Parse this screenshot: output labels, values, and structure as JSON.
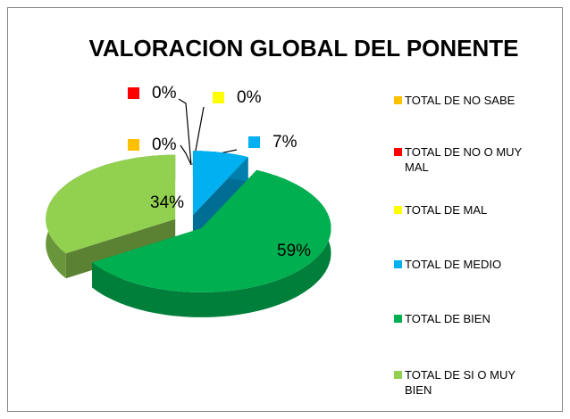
{
  "chart_data": {
    "type": "pie",
    "title": "VALORACION GLOBAL DEL PONENTE",
    "categories": [
      "TOTAL DE NO SABE",
      "TOTAL DE NO O MUY MAL",
      "TOTAL DE MAL",
      "TOTAL DE MEDIO",
      "TOTAL DE BIEN",
      "TOTAL DE SI O MUY BIEN"
    ],
    "values": [
      0,
      0,
      0,
      7,
      59,
      34
    ],
    "value_labels": [
      "0%",
      "0%",
      "0%",
      "7%",
      "59%",
      "34%"
    ],
    "colors": [
      "#ffc000",
      "#ff0000",
      "#ffff00",
      "#00b0f0",
      "#00b050",
      "#92d050"
    ],
    "legend": "right"
  }
}
